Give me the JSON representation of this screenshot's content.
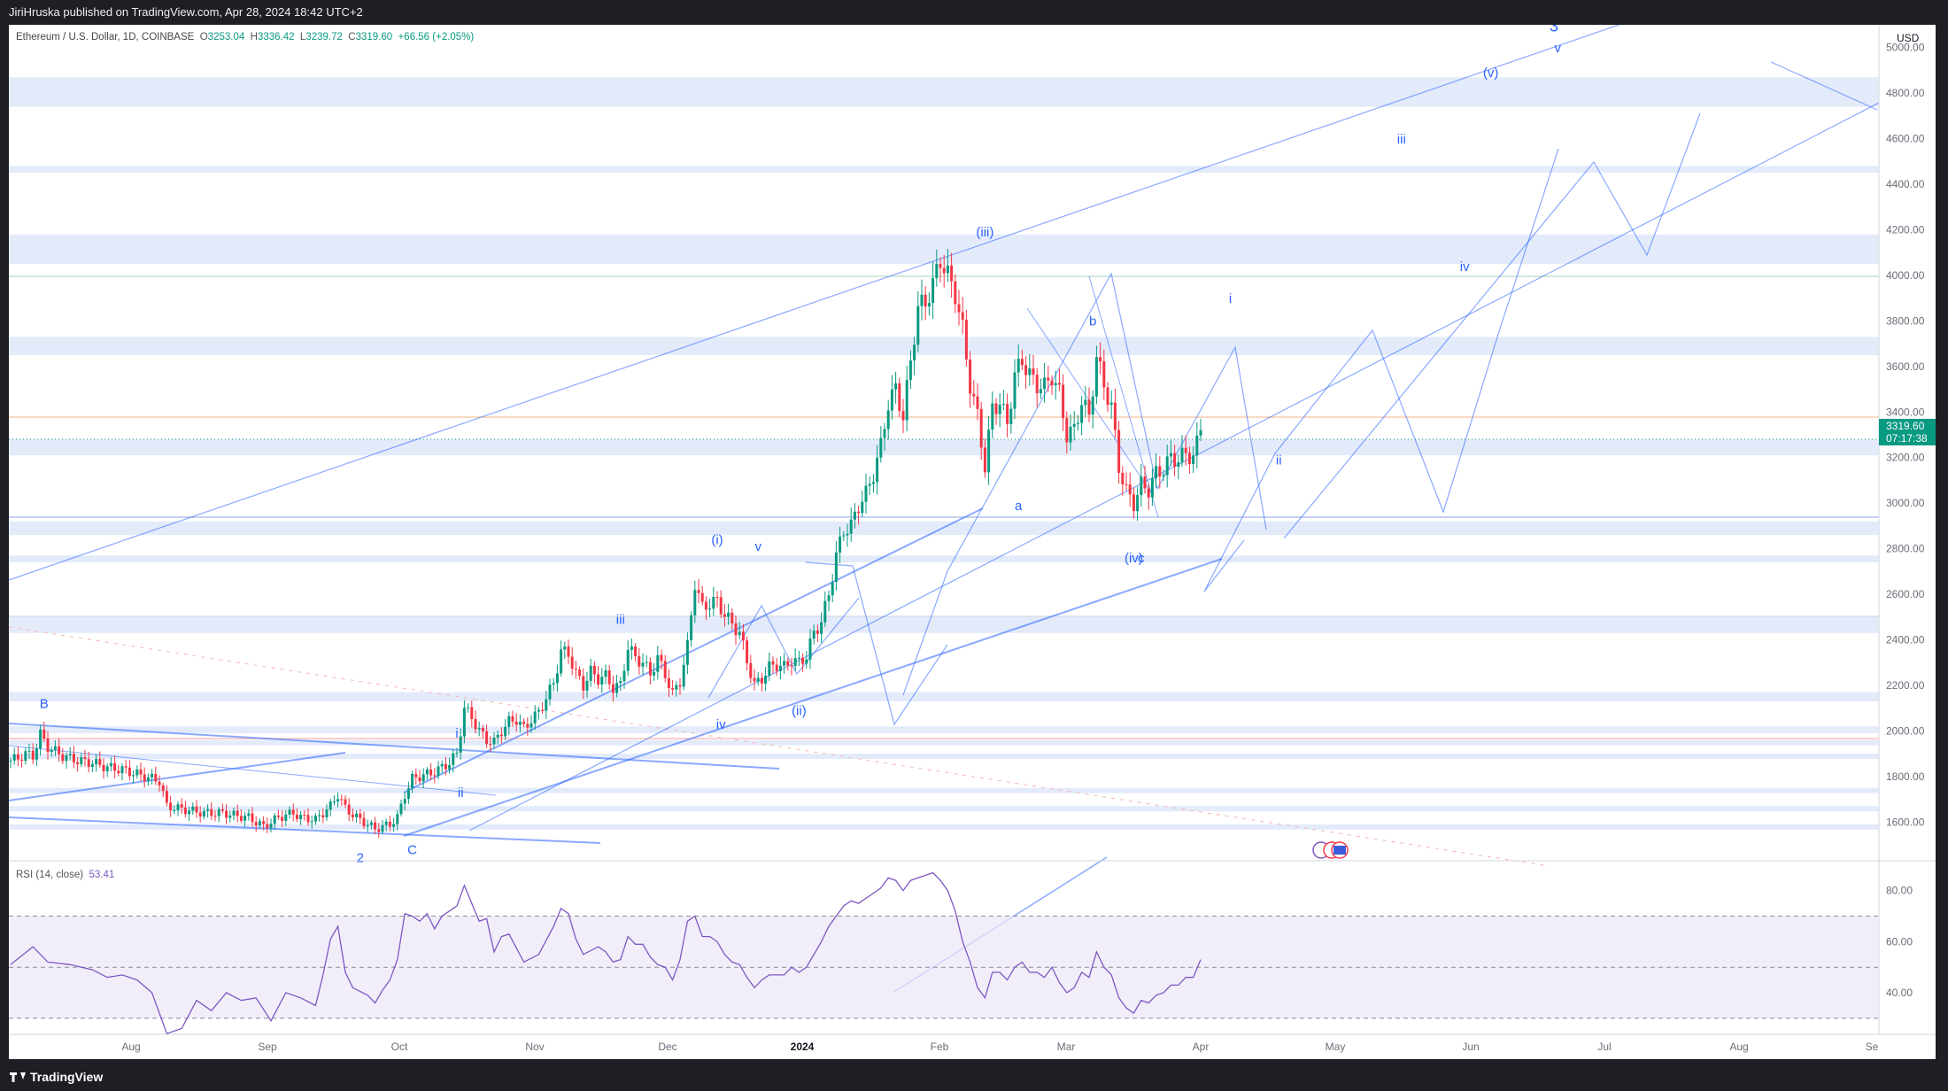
{
  "header": {
    "published": "JiriHruska published on TradingView.com, Apr 28, 2024 18:42 UTC+2"
  },
  "legend": {
    "symbol": "Ethereum / U.S. Dollar, 1D, COINBASE",
    "o_label": "O",
    "open": "3253.04",
    "h_label": "H",
    "high": "3336.42",
    "l_label": "L",
    "low": "3239.72",
    "c_label": "C",
    "close": "3319.60",
    "change": "+66.56 (+2.05%)"
  },
  "currency": "USD",
  "last_price": {
    "value": "3319.60",
    "countdown": "07:17:38"
  },
  "rsi": {
    "label": "RSI (14, close)",
    "value": "53.41"
  },
  "footer": {
    "brand": "TradingView"
  },
  "colors": {
    "up": "#089981",
    "down": "#f23645",
    "wave": "#2962ff",
    "rsi": "#7e57c2",
    "zone": "#e3ebfb"
  },
  "chart_data": {
    "type": "candlestick",
    "price_axis": {
      "ticks": [
        1600,
        1800,
        2000,
        2200,
        2400,
        2600,
        2800,
        3000,
        3200,
        3400,
        3600,
        3800,
        4000,
        4200,
        4400,
        4600,
        4800,
        5000
      ],
      "range": [
        1430,
        5100
      ]
    },
    "time_axis": {
      "labels": [
        "Aug",
        "Sep",
        "Oct",
        "Nov",
        "Dec",
        "2024",
        "Feb",
        "Mar",
        "Apr",
        "May",
        "Jun",
        "Jul",
        "Aug",
        "Se"
      ]
    },
    "rsi_axis": {
      "ticks": [
        20.0,
        40.0,
        60.0,
        80.0
      ],
      "range": [
        14,
        91
      ],
      "bands": [
        30,
        50,
        70
      ]
    },
    "price_path": [
      [
        0,
        1870
      ],
      [
        2,
        1880
      ],
      [
        4,
        1900
      ],
      [
        6,
        1890
      ],
      [
        8,
        1985
      ],
      [
        10,
        1930
      ],
      [
        14,
        1890
      ],
      [
        18,
        1870
      ],
      [
        22,
        1860
      ],
      [
        26,
        1840
      ],
      [
        30,
        1830
      ],
      [
        34,
        1810
      ],
      [
        40,
        1780
      ],
      [
        42,
        1670
      ],
      [
        45,
        1660
      ],
      [
        52,
        1640
      ],
      [
        57,
        1640
      ],
      [
        60,
        1630
      ],
      [
        64,
        1620
      ],
      [
        66,
        1600
      ],
      [
        68,
        1580
      ],
      [
        72,
        1620
      ],
      [
        76,
        1640
      ],
      [
        78,
        1620
      ],
      [
        82,
        1610
      ],
      [
        84,
        1640
      ],
      [
        86,
        1670
      ],
      [
        88,
        1720
      ],
      [
        90,
        1660
      ],
      [
        93,
        1620
      ],
      [
        95,
        1600
      ],
      [
        98,
        1570
      ],
      [
        100,
        1580
      ],
      [
        102,
        1590
      ],
      [
        104,
        1620
      ],
      [
        106,
        1720
      ],
      [
        108,
        1790
      ],
      [
        110,
        1800
      ],
      [
        114,
        1820
      ],
      [
        118,
        1860
      ],
      [
        120,
        1900
      ],
      [
        122,
        2100
      ],
      [
        124,
        2060
      ],
      [
        126,
        2000
      ],
      [
        128,
        1960
      ],
      [
        130,
        1950
      ],
      [
        132,
        2000
      ],
      [
        134,
        2040
      ],
      [
        136,
        2050
      ],
      [
        138,
        2010
      ],
      [
        140,
        2050
      ],
      [
        142,
        2080
      ],
      [
        146,
        2210
      ],
      [
        148,
        2350
      ],
      [
        150,
        2340
      ],
      [
        152,
        2250
      ],
      [
        154,
        2200
      ],
      [
        156,
        2260
      ],
      [
        158,
        2230
      ],
      [
        160,
        2240
      ],
      [
        162,
        2190
      ],
      [
        164,
        2200
      ],
      [
        166,
        2370
      ],
      [
        168,
        2320
      ],
      [
        170,
        2300
      ],
      [
        172,
        2250
      ],
      [
        174,
        2320
      ],
      [
        176,
        2250
      ],
      [
        178,
        2160
      ],
      [
        180,
        2220
      ],
      [
        182,
        2370
      ],
      [
        184,
        2650
      ],
      [
        186,
        2540
      ],
      [
        188,
        2560
      ],
      [
        190,
        2570
      ],
      [
        192,
        2510
      ],
      [
        194,
        2470
      ],
      [
        196,
        2430
      ],
      [
        198,
        2310
      ],
      [
        200,
        2200
      ],
      [
        202,
        2230
      ],
      [
        204,
        2280
      ],
      [
        206,
        2290
      ],
      [
        208,
        2280
      ],
      [
        210,
        2310
      ],
      [
        212,
        2300
      ],
      [
        214,
        2330
      ],
      [
        216,
        2430
      ],
      [
        218,
        2480
      ],
      [
        220,
        2600
      ],
      [
        222,
        2770
      ],
      [
        224,
        2880
      ],
      [
        226,
        2900
      ],
      [
        228,
        2990
      ],
      [
        230,
        3040
      ],
      [
        232,
        3130
      ],
      [
        234,
        3250
      ],
      [
        236,
        3440
      ],
      [
        238,
        3500
      ],
      [
        240,
        3380
      ],
      [
        242,
        3620
      ],
      [
        244,
        3860
      ],
      [
        246,
        3880
      ],
      [
        248,
        3960
      ],
      [
        250,
        4070
      ],
      [
        252,
        4000
      ],
      [
        254,
        3920
      ],
      [
        256,
        3760
      ],
      [
        258,
        3520
      ],
      [
        260,
        3380
      ],
      [
        262,
        3160
      ],
      [
        264,
        3420
      ],
      [
        266,
        3440
      ],
      [
        268,
        3350
      ],
      [
        270,
        3560
      ],
      [
        272,
        3630
      ],
      [
        274,
        3560
      ],
      [
        276,
        3520
      ],
      [
        278,
        3510
      ],
      [
        280,
        3560
      ],
      [
        282,
        3480
      ],
      [
        284,
        3300
      ],
      [
        286,
        3320
      ],
      [
        288,
        3450
      ],
      [
        290,
        3380
      ],
      [
        292,
        3640
      ],
      [
        294,
        3520
      ],
      [
        296,
        3420
      ],
      [
        298,
        3160
      ],
      [
        300,
        3050
      ],
      [
        302,
        3000
      ],
      [
        304,
        3080
      ],
      [
        306,
        3060
      ],
      [
        308,
        3130
      ],
      [
        310,
        3150
      ],
      [
        312,
        3200
      ],
      [
        314,
        3190
      ],
      [
        316,
        3220
      ],
      [
        318,
        3200
      ],
      [
        320,
        3320
      ]
    ],
    "rsi_path": [
      [
        0,
        51
      ],
      [
        6,
        58
      ],
      [
        10,
        52
      ],
      [
        16,
        51
      ],
      [
        22,
        49
      ],
      [
        26,
        46
      ],
      [
        30,
        47
      ],
      [
        34,
        45
      ],
      [
        38,
        40
      ],
      [
        42,
        24
      ],
      [
        46,
        26
      ],
      [
        50,
        37
      ],
      [
        54,
        33
      ],
      [
        58,
        40
      ],
      [
        62,
        37
      ],
      [
        66,
        38
      ],
      [
        70,
        29
      ],
      [
        74,
        40
      ],
      [
        78,
        38
      ],
      [
        82,
        35
      ],
      [
        84,
        47
      ],
      [
        86,
        61
      ],
      [
        88,
        66
      ],
      [
        90,
        48
      ],
      [
        92,
        42
      ],
      [
        96,
        39
      ],
      [
        98,
        36
      ],
      [
        100,
        41
      ],
      [
        102,
        45
      ],
      [
        104,
        53
      ],
      [
        106,
        71
      ],
      [
        108,
        70
      ],
      [
        110,
        68
      ],
      [
        112,
        71
      ],
      [
        114,
        65
      ],
      [
        116,
        70
      ],
      [
        118,
        72
      ],
      [
        120,
        74
      ],
      [
        122,
        82
      ],
      [
        124,
        75
      ],
      [
        126,
        68
      ],
      [
        128,
        69
      ],
      [
        130,
        56
      ],
      [
        132,
        62
      ],
      [
        134,
        63
      ],
      [
        138,
        52
      ],
      [
        142,
        55
      ],
      [
        146,
        66
      ],
      [
        148,
        73
      ],
      [
        150,
        71
      ],
      [
        152,
        61
      ],
      [
        154,
        55
      ],
      [
        158,
        58
      ],
      [
        160,
        56
      ],
      [
        162,
        52
      ],
      [
        164,
        53
      ],
      [
        166,
        62
      ],
      [
        168,
        59
      ],
      [
        170,
        59
      ],
      [
        172,
        54
      ],
      [
        174,
        51
      ],
      [
        176,
        50
      ],
      [
        178,
        45
      ],
      [
        180,
        53
      ],
      [
        182,
        68
      ],
      [
        184,
        70
      ],
      [
        186,
        62
      ],
      [
        188,
        62
      ],
      [
        190,
        60
      ],
      [
        192,
        55
      ],
      [
        194,
        52
      ],
      [
        196,
        51
      ],
      [
        198,
        46
      ],
      [
        200,
        42
      ],
      [
        202,
        45
      ],
      [
        204,
        47
      ],
      [
        206,
        47
      ],
      [
        208,
        47
      ],
      [
        210,
        50
      ],
      [
        212,
        48
      ],
      [
        214,
        50
      ],
      [
        216,
        55
      ],
      [
        218,
        60
      ],
      [
        220,
        66
      ],
      [
        222,
        70
      ],
      [
        224,
        74
      ],
      [
        226,
        76
      ],
      [
        228,
        75
      ],
      [
        230,
        77
      ],
      [
        232,
        79
      ],
      [
        234,
        81
      ],
      [
        236,
        85
      ],
      [
        238,
        84
      ],
      [
        240,
        80
      ],
      [
        242,
        84
      ],
      [
        244,
        85
      ],
      [
        246,
        86
      ],
      [
        248,
        87
      ],
      [
        250,
        84
      ],
      [
        252,
        80
      ],
      [
        254,
        72
      ],
      [
        256,
        60
      ],
      [
        258,
        52
      ],
      [
        260,
        42
      ],
      [
        262,
        38
      ],
      [
        264,
        48
      ],
      [
        266,
        48
      ],
      [
        268,
        45
      ],
      [
        270,
        50
      ],
      [
        272,
        52
      ],
      [
        274,
        48
      ],
      [
        276,
        48
      ],
      [
        278,
        46
      ],
      [
        280,
        50
      ],
      [
        282,
        44
      ],
      [
        284,
        40
      ],
      [
        286,
        42
      ],
      [
        288,
        48
      ],
      [
        290,
        46
      ],
      [
        292,
        56
      ],
      [
        294,
        50
      ],
      [
        296,
        47
      ],
      [
        298,
        38
      ],
      [
        300,
        34
      ],
      [
        302,
        32
      ],
      [
        304,
        37
      ],
      [
        306,
        36
      ],
      [
        308,
        39
      ],
      [
        310,
        40
      ],
      [
        312,
        43
      ],
      [
        314,
        43
      ],
      [
        316,
        46
      ],
      [
        318,
        46
      ],
      [
        320,
        53
      ]
    ],
    "zones": [
      [
        4740,
        4870
      ],
      [
        4450,
        4480
      ],
      [
        4050,
        4180
      ],
      [
        3650,
        3730
      ],
      [
        3210,
        3280
      ],
      [
        2860,
        2920
      ],
      [
        2740,
        2770
      ],
      [
        2430,
        2500
      ],
      [
        2130,
        2170
      ],
      [
        1990,
        2020
      ],
      [
        1940,
        1960
      ],
      [
        1880,
        1900
      ],
      [
        1730,
        1750
      ],
      [
        1650,
        1670
      ],
      [
        1570,
        1590
      ]
    ],
    "wave_labels": [
      {
        "text": "B",
        "x": 9,
        "p": 2100
      },
      {
        "text": "2",
        "x": 94,
        "p": 1425
      },
      {
        "text": "C",
        "x": 108,
        "p": 1460
      },
      {
        "text": "i",
        "x": 120,
        "p": 1970
      },
      {
        "text": "ii",
        "x": 121,
        "p": 1710
      },
      {
        "text": "iii",
        "x": 164,
        "p": 2470
      },
      {
        "text": "iv",
        "x": 191,
        "p": 2010
      },
      {
        "text": "(i)",
        "x": 190,
        "p": 2820
      },
      {
        "text": "v",
        "x": 201,
        "p": 2790
      },
      {
        "text": "(ii)",
        "x": 212,
        "p": 2070
      },
      {
        "text": "(iii)",
        "x": 262,
        "p": 4170
      },
      {
        "text": "a",
        "x": 271,
        "p": 2970
      },
      {
        "text": "b",
        "x": 291,
        "p": 3780
      },
      {
        "text": "(iv)",
        "x": 302,
        "p": 2740
      },
      {
        "text": "c",
        "x": 304,
        "p": 2740
      },
      {
        "text": "i",
        "x": 328,
        "p": 3880
      },
      {
        "text": "ii",
        "x": 341,
        "p": 3170
      },
      {
        "text": "iii",
        "x": 374,
        "p": 4580
      },
      {
        "text": "iv",
        "x": 391,
        "p": 4020
      },
      {
        "text": "(v)",
        "x": 398,
        "p": 4870
      },
      {
        "text": "3",
        "x": 415,
        "p": 5070
      },
      {
        "text": "v",
        "x": 416,
        "p": 4980
      }
    ]
  }
}
